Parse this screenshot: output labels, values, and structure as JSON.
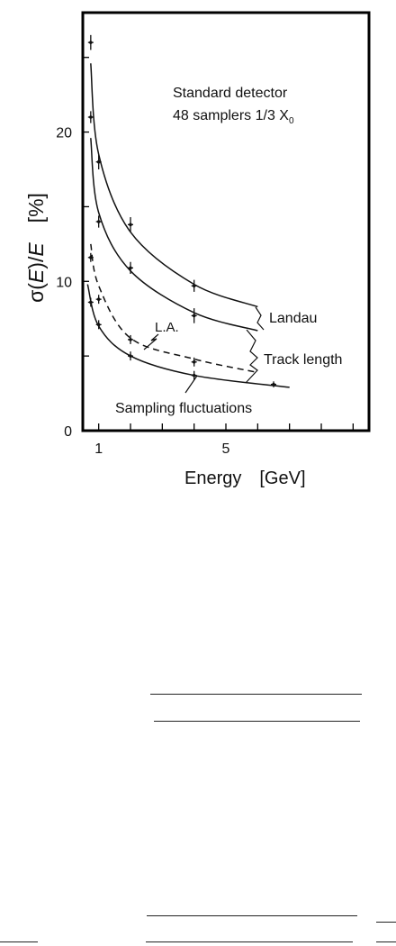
{
  "chart_data": {
    "type": "line",
    "xlabel": "Energy",
    "xunit": "[GeV]",
    "ylabel_prefix": "σ(",
    "ylabel_var": "E",
    "ylabel_mid": ")/",
    "ylabel_var2": "E",
    "yunit": "[%]",
    "xlim": [
      0.5,
      9.5
    ],
    "ylim": [
      0,
      28
    ],
    "x_ticks": [
      1,
      2,
      3,
      4,
      5,
      6,
      7,
      8,
      9
    ],
    "x_tick_labels": [
      {
        "x": 1,
        "label": "1"
      },
      {
        "x": 5,
        "label": "5"
      }
    ],
    "y_ticks": [
      0,
      5,
      10,
      15,
      20,
      25
    ],
    "y_tick_labels": [
      {
        "y": 0,
        "label": "0"
      },
      {
        "y": 10,
        "label": "10"
      },
      {
        "y": 20,
        "label": "20"
      }
    ],
    "grid": false,
    "annotation": {
      "line1": "Standard detector",
      "line2_main": "48 samplers 1/3 X",
      "line2_sub": "0"
    },
    "series": [
      {
        "name": "Landau",
        "style": "solid",
        "curve": [
          [
            0.75,
            24.6
          ],
          [
            1.0,
            18.5
          ],
          [
            2.0,
            13.3
          ],
          [
            4.0,
            9.8
          ],
          [
            6.0,
            8.3
          ]
        ],
        "points": [
          [
            0.75,
            26.0,
            0.5
          ],
          [
            1.0,
            18.0,
            0.5
          ],
          [
            2.0,
            13.8,
            0.5
          ],
          [
            4.0,
            9.7,
            0.4
          ]
        ]
      },
      {
        "name": "Track length",
        "style": "solid",
        "curve": [
          [
            0.75,
            19.6
          ],
          [
            1.0,
            14.6
          ],
          [
            2.0,
            10.7
          ],
          [
            4.0,
            7.9
          ],
          [
            6.0,
            6.7
          ]
        ],
        "points": [
          [
            0.75,
            21.0,
            0.4
          ],
          [
            1.0,
            14.0,
            0.4
          ],
          [
            2.0,
            10.9,
            0.4
          ],
          [
            4.0,
            7.7,
            0.5
          ]
        ]
      },
      {
        "name": "L.A.",
        "style": "dashed",
        "curve": [
          [
            0.75,
            12.5
          ],
          [
            1.0,
            9.7
          ],
          [
            2.0,
            6.2
          ],
          [
            4.0,
            4.8
          ],
          [
            6.0,
            3.9
          ]
        ],
        "points": [
          [
            0.75,
            11.6,
            0.3
          ],
          [
            1.0,
            8.8,
            0.3
          ],
          [
            2.0,
            6.1,
            0.3
          ],
          [
            4.0,
            4.6,
            0.3
          ]
        ]
      },
      {
        "name": "Sampling fluctuations",
        "style": "solid",
        "curve": [
          [
            0.65,
            9.8
          ],
          [
            1.0,
            7.0
          ],
          [
            2.0,
            5.0
          ],
          [
            4.0,
            3.7
          ],
          [
            7.0,
            2.9
          ]
        ],
        "points": [
          [
            0.75,
            8.6,
            0.3
          ],
          [
            1.0,
            7.1,
            0.3
          ],
          [
            2.0,
            5.0,
            0.3
          ],
          [
            4.0,
            3.7,
            0.3
          ],
          [
            6.5,
            3.1,
            0.2
          ]
        ]
      }
    ],
    "labels": {
      "landau": "Landau",
      "track_length": "Track length",
      "la": "L.A.",
      "sampling": "Sampling fluctuations"
    }
  }
}
